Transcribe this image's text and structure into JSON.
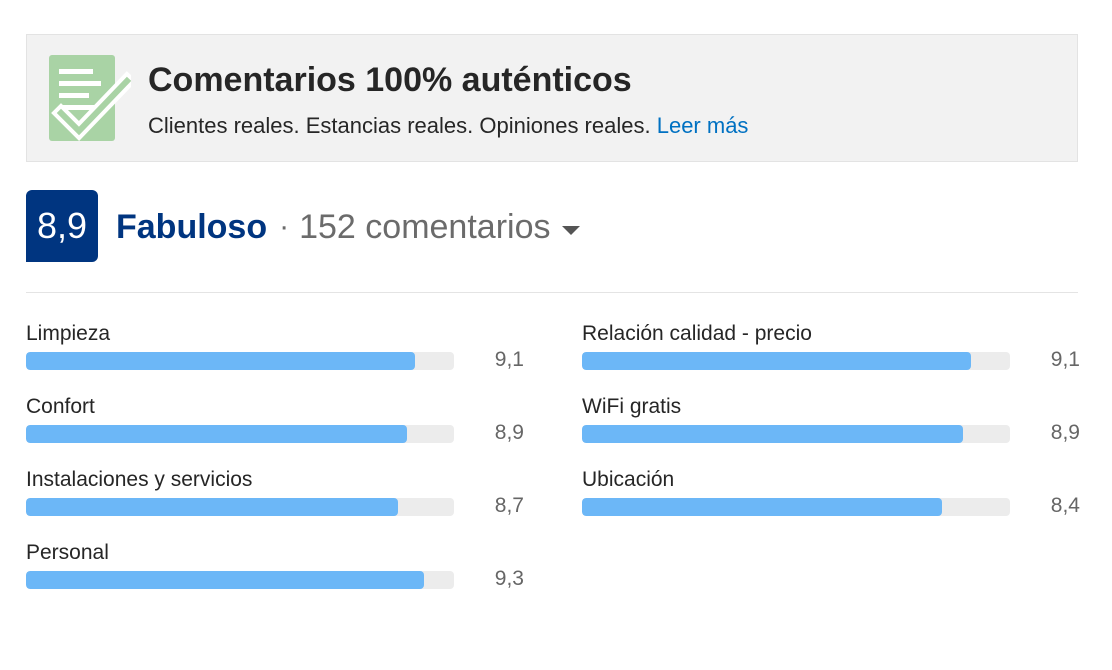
{
  "banner": {
    "title": "Comentarios 100% auténticos",
    "subtitle": "Clientes reales. Estancias reales. Opiniones reales.",
    "link": "Leer más",
    "icon": "verified-reviews-document-icon",
    "icon_color": "#a9d3a5"
  },
  "rating": {
    "score": "8,9",
    "word": "Fabuloso",
    "separator": "·",
    "count": "152 comentarios",
    "score_bg": "#003580"
  },
  "categories_left": [
    {
      "label": "Limpieza",
      "value": "9,1",
      "score": 9.1
    },
    {
      "label": "Confort",
      "value": "8,9",
      "score": 8.9
    },
    {
      "label": "Instalaciones y servicios",
      "value": "8,7",
      "score": 8.7
    },
    {
      "label": "Personal",
      "value": "9,3",
      "score": 9.3
    }
  ],
  "categories_right": [
    {
      "label": "Relación calidad - precio",
      "value": "9,1",
      "score": 9.1
    },
    {
      "label": "WiFi gratis",
      "value": "8,9",
      "score": 8.9
    },
    {
      "label": "Ubicación",
      "value": "8,4",
      "score": 8.4
    }
  ],
  "colors": {
    "bar_fill": "#6cb7f7",
    "bar_track": "#ececec",
    "link": "#0071c2"
  }
}
